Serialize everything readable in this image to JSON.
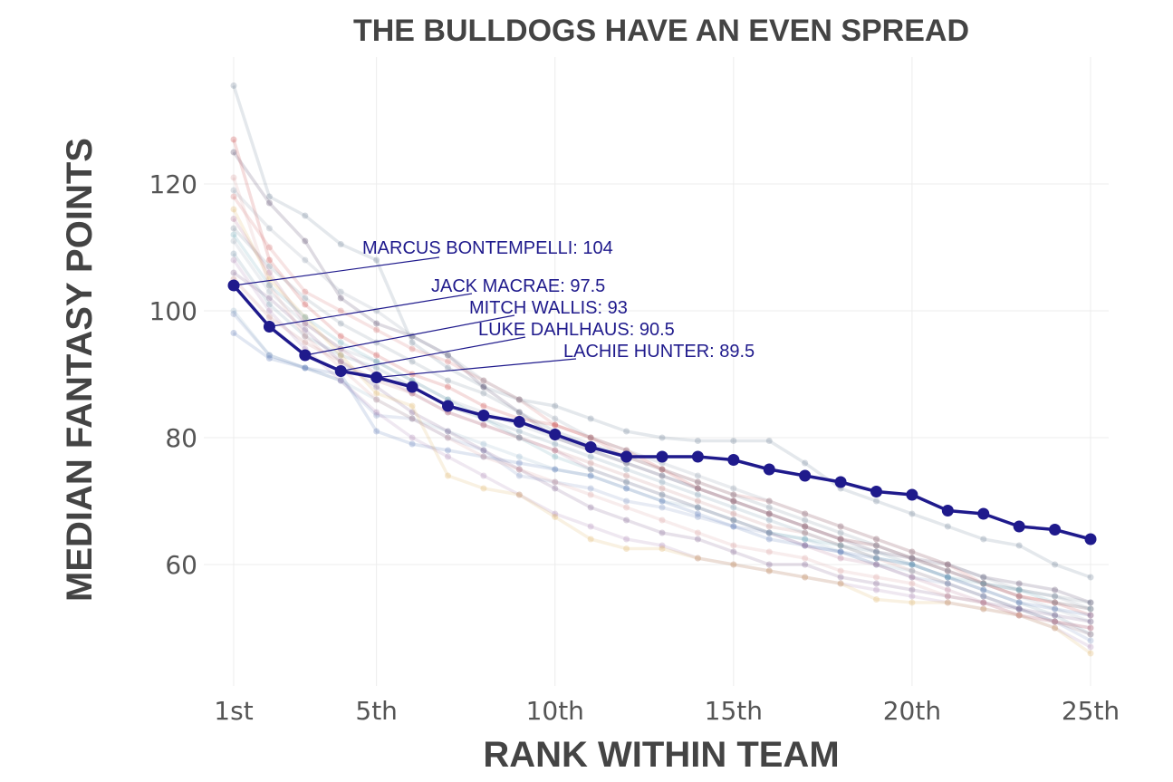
{
  "chart_data": {
    "type": "line",
    "title": "THE BULLDOGS HAVE AN EVEN SPREAD",
    "xlabel": "RANK WITHIN TEAM",
    "ylabel": "MEDIAN FANTASY POINTS",
    "xlim": [
      1,
      25
    ],
    "ylim": [
      42,
      140
    ],
    "x_ticks": [
      {
        "value": 1,
        "label": "1st"
      },
      {
        "value": 5,
        "label": "5th"
      },
      {
        "value": 10,
        "label": "10th"
      },
      {
        "value": 15,
        "label": "15th"
      },
      {
        "value": 20,
        "label": "20th"
      },
      {
        "value": 25,
        "label": "25th"
      }
    ],
    "y_ticks": [
      {
        "value": 60,
        "label": "60"
      },
      {
        "value": 80,
        "label": "80"
      },
      {
        "value": 100,
        "label": "100"
      },
      {
        "value": 120,
        "label": "120"
      }
    ],
    "grid": true,
    "highlight_color": "#1f1a8c",
    "series": [
      {
        "values": [
          104,
          97.5,
          93,
          90.5,
          89.5,
          88,
          85,
          83.5,
          82.5,
          80.5,
          78.5,
          77,
          77,
          77,
          76.5,
          75,
          74,
          73,
          71.5,
          71,
          68.5,
          68,
          66,
          65.5,
          64
        ],
        "highlight": true
      },
      {
        "values": [
          135.5,
          118,
          115,
          110.5,
          108,
          95,
          91,
          88,
          86,
          85,
          83,
          81,
          80,
          79.5,
          79.5,
          79.5,
          76,
          72,
          70,
          68,
          66,
          64,
          63,
          60,
          58
        ],
        "color": "#6b7f95"
      },
      {
        "values": [
          125,
          117,
          111,
          102,
          98,
          96,
          93,
          88,
          84,
          80,
          78,
          76,
          74,
          72,
          70,
          68,
          66,
          64,
          62,
          61,
          60,
          58,
          57,
          56,
          54
        ],
        "color": "#4a3a5c"
      },
      {
        "values": [
          118,
          110,
          103,
          100,
          97,
          94,
          92,
          89,
          86,
          82,
          80,
          77,
          75,
          73,
          71,
          70,
          68,
          66,
          64,
          62,
          60,
          57,
          55,
          54,
          53
        ],
        "color": "#d06a6a"
      },
      {
        "values": [
          127,
          108,
          101,
          96,
          93,
          90,
          88,
          85,
          83,
          82,
          80,
          78,
          75,
          72,
          70,
          68,
          66,
          64,
          63,
          61,
          59,
          57,
          55,
          54,
          52
        ],
        "color": "#c94040"
      },
      {
        "values": [
          119,
          113,
          108,
          103,
          100,
          96,
          93,
          89,
          86,
          83,
          80,
          78,
          76,
          74,
          72,
          70,
          68,
          66,
          64,
          62,
          60,
          58,
          56,
          55,
          53
        ],
        "color": "#8896a8"
      },
      {
        "values": [
          113,
          107,
          102,
          98,
          95,
          92,
          89,
          87,
          84,
          81,
          79,
          77,
          75,
          73,
          71,
          69,
          67,
          65,
          63,
          61,
          59,
          57,
          56,
          55,
          54
        ],
        "color": "#7a8a9a"
      },
      {
        "values": [
          111,
          103,
          98,
          94,
          92,
          89,
          86,
          84,
          82,
          80,
          78,
          76,
          74,
          72,
          70,
          68,
          66,
          64,
          63,
          61,
          59,
          57,
          55,
          53,
          51
        ],
        "color": "#9aa8b8"
      },
      {
        "values": [
          109,
          101,
          96,
          93,
          91,
          88,
          85,
          83,
          81,
          79,
          77,
          75,
          73,
          71,
          69,
          67,
          65,
          63,
          62,
          60,
          58,
          56,
          54,
          52,
          49
        ],
        "color": "#6f8fa8"
      },
      {
        "values": [
          105,
          99,
          95,
          92,
          89,
          87,
          84,
          82,
          80,
          78,
          76,
          74,
          72,
          70,
          68,
          66,
          65,
          63,
          61,
          59,
          57,
          55,
          53,
          51,
          50
        ],
        "color": "#c08080"
      },
      {
        "values": [
          100,
          93,
          91,
          89,
          86,
          83,
          81,
          79,
          77,
          75,
          74,
          72,
          70,
          69,
          67,
          65,
          64,
          62,
          60,
          59,
          57,
          55,
          53,
          51,
          49
        ],
        "color": "#8fb0c8"
      },
      {
        "values": [
          99.5,
          93,
          91,
          89,
          83.5,
          83,
          80,
          78,
          74,
          73,
          72,
          70,
          69,
          67.5,
          66,
          65,
          63,
          62,
          60,
          58,
          57,
          55,
          53,
          51,
          48
        ],
        "color": "#7a90c0"
      },
      {
        "values": [
          96.5,
          92.5,
          91,
          90,
          81,
          79,
          78,
          77,
          76,
          75,
          74,
          72,
          70,
          68,
          66,
          64,
          63,
          62,
          61,
          60,
          58,
          56,
          54,
          53,
          52
        ],
        "color": "#5a78b8"
      },
      {
        "values": [
          114.5,
          106,
          98,
          94,
          90,
          87,
          84,
          82,
          80,
          78,
          75,
          73,
          71,
          69,
          67,
          65,
          63,
          61,
          60,
          58,
          56,
          54,
          52,
          51,
          50
        ],
        "color": "#b07090"
      },
      {
        "values": [
          106,
          102,
          97,
          92,
          88,
          84,
          81,
          78,
          75,
          72,
          69,
          67,
          65,
          64,
          62,
          60,
          60,
          58,
          57,
          56,
          55,
          54,
          53,
          52,
          51
        ],
        "color": "#7b5a8a"
      },
      {
        "values": [
          108,
          100,
          94,
          89,
          84,
          80,
          77,
          74,
          71,
          68,
          66,
          64,
          63,
          61,
          60,
          59,
          58,
          57,
          56,
          55,
          54,
          53,
          52,
          50,
          47
        ],
        "color": "#a880b0"
      },
      {
        "values": [
          116,
          105,
          99,
          93,
          87,
          85,
          74,
          72,
          71,
          67.5,
          64,
          62.5,
          62.5,
          61,
          60,
          59,
          58,
          57,
          54.5,
          54,
          54,
          53,
          52,
          50,
          46
        ],
        "color": "#e0b060"
      },
      {
        "values": [
          121,
          104,
          96,
          91,
          86,
          83,
          80,
          77,
          75,
          73,
          71,
          69,
          67,
          65,
          63,
          62,
          61,
          59,
          58,
          57,
          55,
          54,
          52,
          51,
          49
        ],
        "color": "#d89a9a"
      },
      {
        "values": [
          112,
          104,
          99,
          95,
          92,
          89,
          86,
          83,
          80,
          77,
          75,
          73,
          71,
          69,
          67,
          65,
          64,
          63,
          61,
          60,
          58,
          57,
          56,
          54,
          53
        ],
        "color": "#6aa8b8"
      }
    ],
    "annotations": [
      {
        "text": "MARCUS BONTEMPELLI: 104",
        "x": 1,
        "y": 104
      },
      {
        "text": "JACK MACRAE: 97.5",
        "x": 2,
        "y": 97.5
      },
      {
        "text": "MITCH WALLIS: 93",
        "x": 3,
        "y": 93
      },
      {
        "text": "LUKE DAHLHAUS: 90.5",
        "x": 4,
        "y": 90.5
      },
      {
        "text": "LACHIE HUNTER: 89.5",
        "x": 5,
        "y": 89.5
      }
    ]
  }
}
